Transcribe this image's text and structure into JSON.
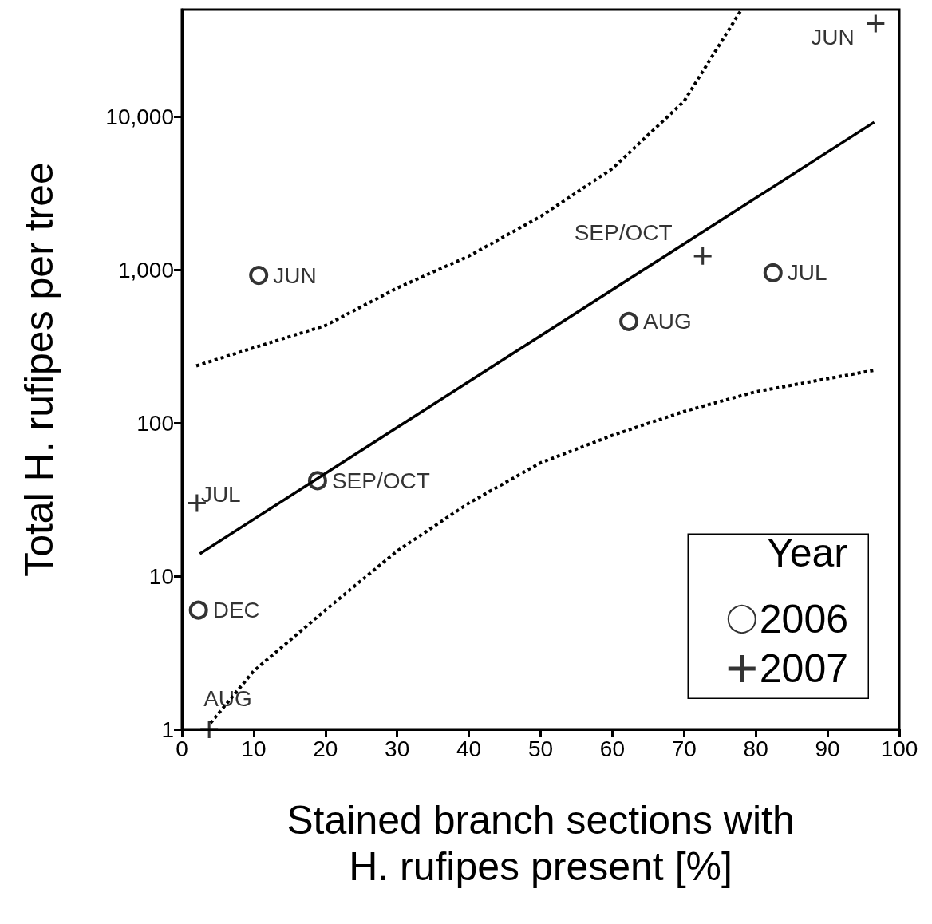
{
  "chart_data": {
    "type": "scatter",
    "xlabel": "Stained branch sections with H. rufipes present [%]",
    "ylabel": "Total H. rufipes per tree",
    "legend_title": "Year",
    "legend": "bottom right",
    "log": "y",
    "grid": false,
    "xlim": [
      0,
      100
    ],
    "xticks": [
      0,
      10,
      20,
      30,
      40,
      50,
      60,
      70,
      80,
      90,
      100
    ],
    "ylim": [
      1,
      50000
    ],
    "yticks": [
      1,
      10,
      100,
      {
        "value": 1000,
        "label": "1,000"
      },
      {
        "value": 10000,
        "label": "10,000"
      }
    ],
    "series": [
      {
        "name": "2006",
        "marker": "circle",
        "color": "#000000",
        "x": [
          10.7,
          18.9,
          2.3,
          62.3,
          82.4
        ],
        "values": [
          920,
          42,
          6,
          460,
          955
        ],
        "value_labels": [
          "JUN",
          "SEP/OCT",
          "DEC",
          "AUG",
          "JUL"
        ]
      },
      {
        "name": "2007",
        "marker": "cross",
        "color": "#000000",
        "x": [
          96.7,
          72.6,
          2.1,
          3.8
        ],
        "values": [
          40500,
          1230,
          30,
          1
        ],
        "value_labels": [
          "JUN",
          "SEP/OCT",
          "JUL",
          "AUG"
        ]
      },
      {
        "type": "line",
        "marker": "none",
        "line_style": "solid",
        "color": "#000000",
        "x": [
          2.5,
          96.5
        ],
        "values": [
          14,
          9200
        ]
      },
      {
        "type": "line",
        "marker": "none",
        "line_style": "dotted",
        "color": "#000000",
        "x": [
          2,
          10,
          20,
          30,
          40,
          50,
          60,
          70,
          78
        ],
        "values": [
          236,
          310,
          433,
          760,
          1230,
          2230,
          4580,
          12600,
          50000
        ]
      },
      {
        "type": "line",
        "marker": "none",
        "line_style": "dotted",
        "color": "#000000",
        "x": [
          4,
          10,
          20,
          30,
          40,
          50,
          60,
          70,
          80,
          96.5
        ],
        "values": [
          1.1,
          2.4,
          6,
          14.6,
          30,
          55,
          83,
          119,
          160,
          221
        ]
      }
    ]
  }
}
